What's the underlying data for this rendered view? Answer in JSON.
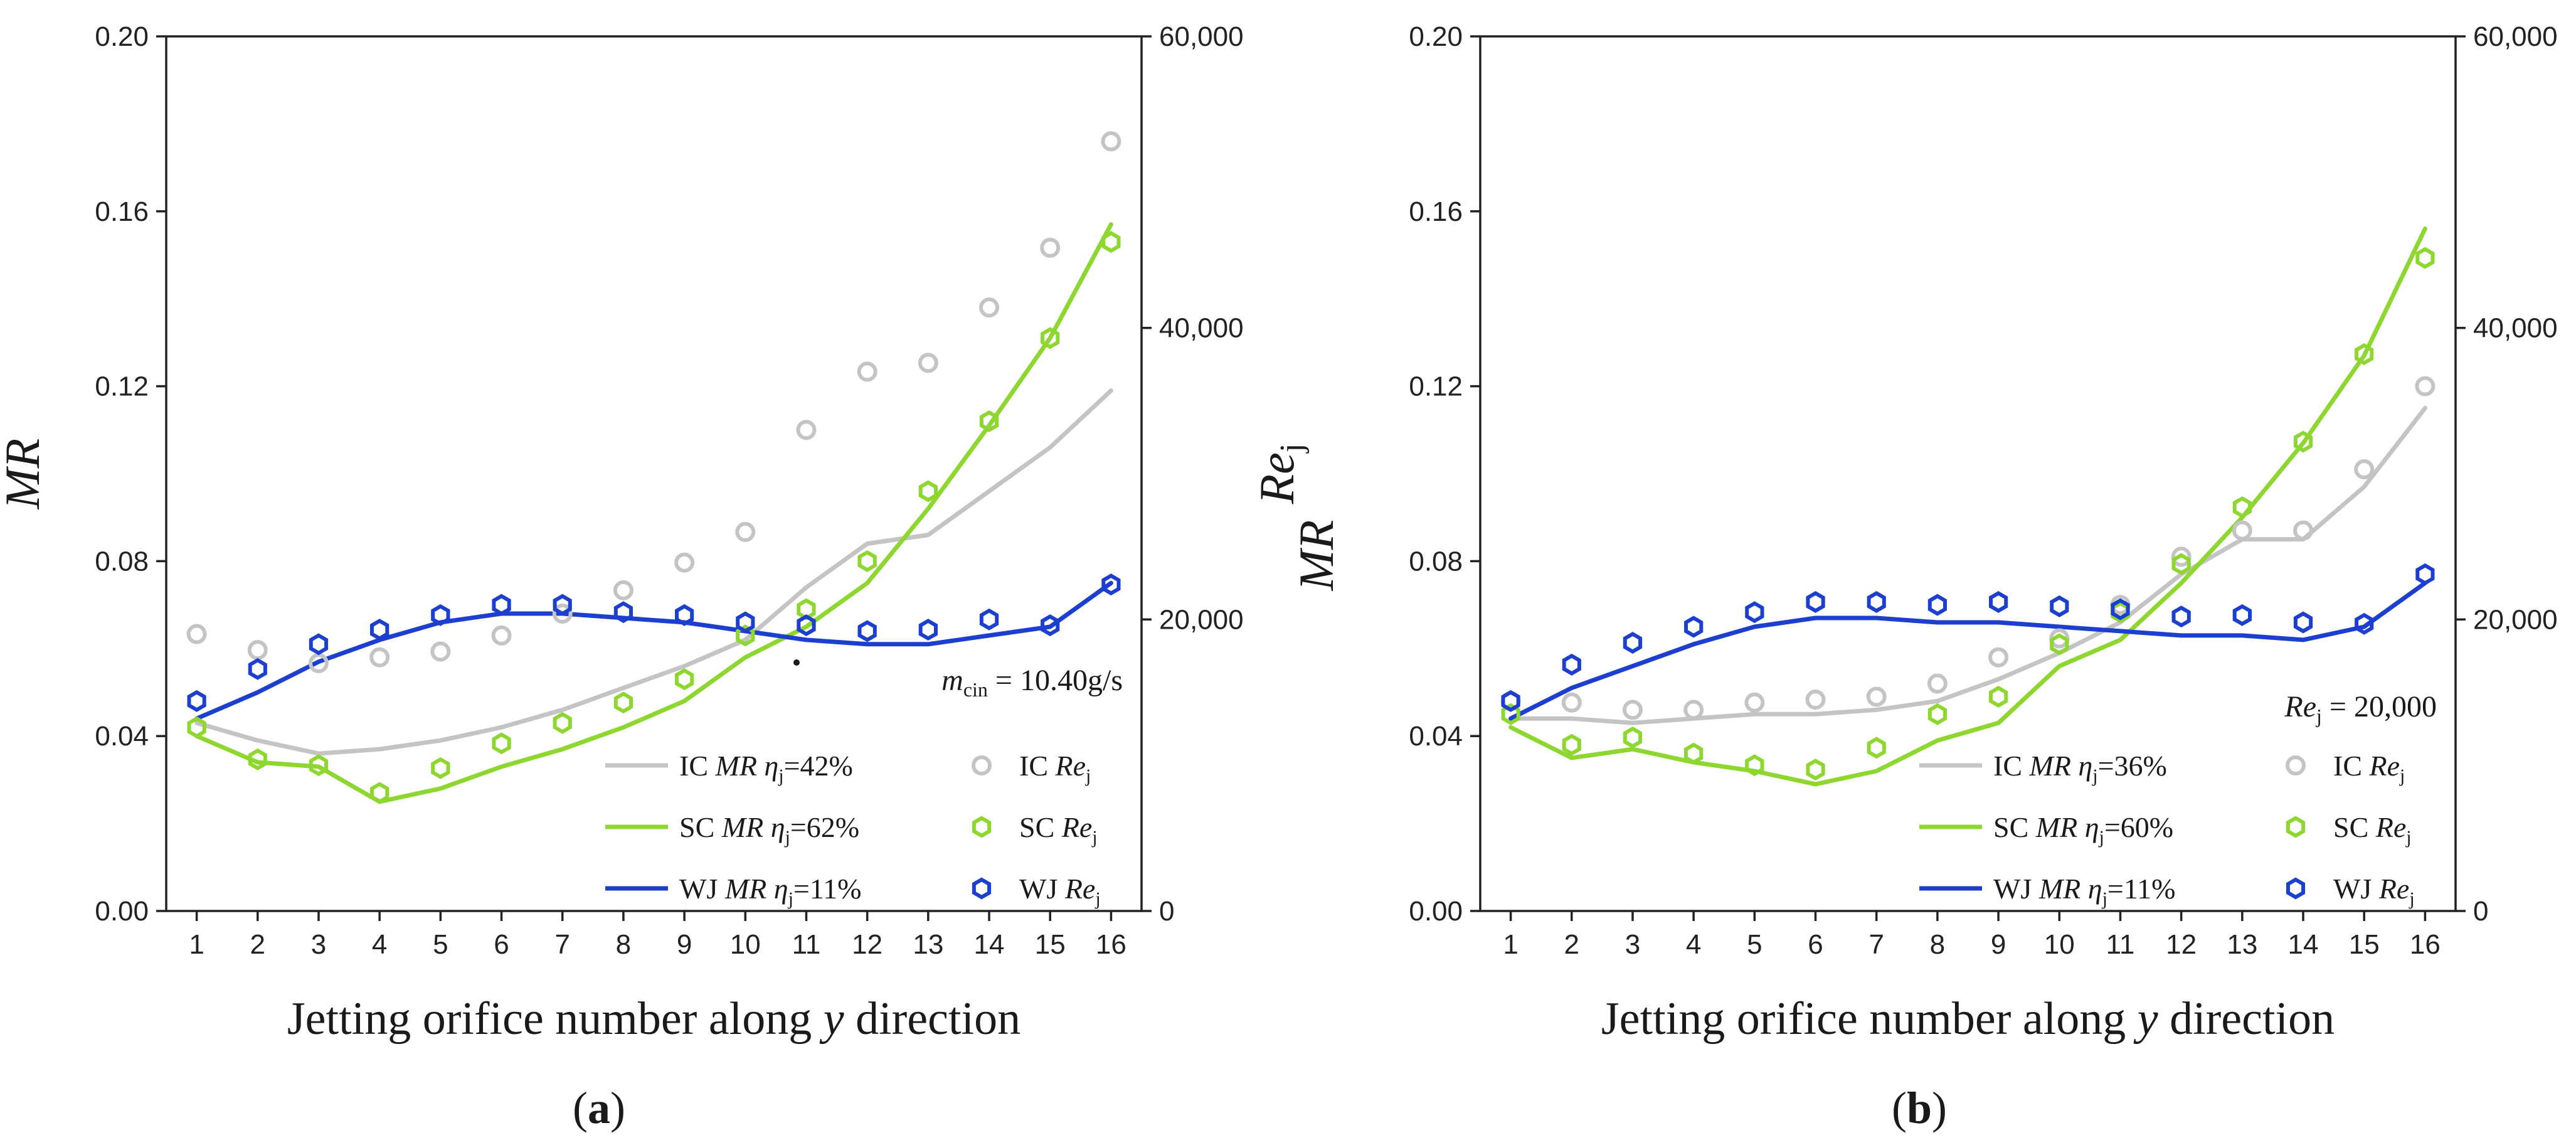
{
  "figure": {
    "xlabel_parts": [
      "Jetting orifice number along ",
      "y",
      " direction"
    ],
    "y_left_label": "MR",
    "y_right_label": {
      "base": "Re",
      "sub": "j"
    }
  },
  "chart_data": [
    {
      "type": "line+scatter",
      "panel": "a",
      "panel_label": [
        "(",
        "a",
        ")"
      ],
      "x": [
        1,
        2,
        3,
        4,
        5,
        6,
        7,
        8,
        9,
        10,
        11,
        12,
        13,
        14,
        15,
        16
      ],
      "x_ticks": [
        "1",
        "2",
        "3",
        "4",
        "5",
        "6",
        "7",
        "8",
        "9",
        "10",
        "11",
        "12",
        "13",
        "14",
        "15",
        "16"
      ],
      "xlim": [
        0.5,
        16.5
      ],
      "y_left": {
        "label": "MR",
        "lim": [
          0,
          0.2
        ],
        "ticks": [
          "0.00",
          "0.04",
          "0.08",
          "0.12",
          "0.16",
          "0.20"
        ],
        "tick_values": [
          0,
          0.04,
          0.08,
          0.12,
          0.16,
          0.2
        ]
      },
      "y_right": {
        "label": "Rej",
        "lim": [
          0,
          60000
        ],
        "ticks": [
          "0",
          "20,000",
          "40,000",
          "60,000"
        ],
        "tick_values": [
          0,
          20000,
          40000,
          60000
        ]
      },
      "annotation": {
        "symbol": "m",
        "sub": "cin",
        "text": " = 10.40g/s"
      },
      "series": [
        {
          "name": "IC MR",
          "kind": "line",
          "axis": "left",
          "color": "#c4c4c4",
          "legend": {
            "prefix": "IC ",
            "var": "MR",
            "eta": "η",
            "eta_sub": "j",
            "value": "=42%"
          },
          "values": [
            0.043,
            0.039,
            0.036,
            0.037,
            0.039,
            0.042,
            0.046,
            0.051,
            0.056,
            0.062,
            0.074,
            0.084,
            0.086,
            0.096,
            0.106,
            0.119
          ]
        },
        {
          "name": "IC Rej",
          "kind": "scatter",
          "axis": "right",
          "color": "#c4c4c4",
          "marker": "circle",
          "legend": {
            "prefix": "IC ",
            "var": "Re",
            "sub": "j"
          },
          "values": [
            19000,
            17900,
            17000,
            17400,
            17800,
            18900,
            20400,
            22000,
            23900,
            26000,
            33000,
            37000,
            37600,
            41400,
            45500,
            52800
          ]
        },
        {
          "name": "SC MR",
          "kind": "line",
          "axis": "left",
          "color": "#8ed630",
          "legend": {
            "prefix": "SC ",
            "var": "MR",
            "eta": "η",
            "eta_sub": "j",
            "value": "=62%"
          },
          "values": [
            0.04,
            0.034,
            0.033,
            0.025,
            0.028,
            0.033,
            0.037,
            0.042,
            0.048,
            0.058,
            0.065,
            0.075,
            0.092,
            0.111,
            0.131,
            0.157
          ]
        },
        {
          "name": "SC Rej",
          "kind": "scatter",
          "axis": "right",
          "color": "#8ed630",
          "marker": "hexagon",
          "legend": {
            "prefix": "SC ",
            "var": "Re",
            "sub": "j"
          },
          "values": [
            12600,
            10400,
            10000,
            8100,
            9800,
            11500,
            12900,
            14300,
            15900,
            18900,
            20700,
            24000,
            28800,
            33600,
            39300,
            45900
          ]
        },
        {
          "name": "WJ MR",
          "kind": "line",
          "axis": "left",
          "color": "#1c3fd0",
          "legend": {
            "prefix": "WJ ",
            "var": "MR",
            "eta": "η",
            "eta_sub": "j",
            "value": "=11%"
          },
          "values": [
            0.044,
            0.05,
            0.057,
            0.062,
            0.066,
            0.068,
            0.068,
            0.067,
            0.066,
            0.064,
            0.062,
            0.061,
            0.061,
            0.063,
            0.065,
            0.075
          ]
        },
        {
          "name": "WJ Rej",
          "kind": "scatter",
          "axis": "right",
          "color": "#1c3fd0",
          "marker": "hexagon",
          "legend": {
            "prefix": "WJ ",
            "var": "Re",
            "sub": "j"
          },
          "values": [
            14400,
            16600,
            18300,
            19300,
            20300,
            21000,
            21000,
            20500,
            20300,
            19800,
            19600,
            19200,
            19300,
            20000,
            19600,
            22400
          ]
        }
      ]
    },
    {
      "type": "line+scatter",
      "panel": "b",
      "panel_label": [
        "(",
        "b",
        ")"
      ],
      "x": [
        1,
        2,
        3,
        4,
        5,
        6,
        7,
        8,
        9,
        10,
        11,
        12,
        13,
        14,
        15,
        16
      ],
      "x_ticks": [
        "1",
        "2",
        "3",
        "4",
        "5",
        "6",
        "7",
        "8",
        "9",
        "10",
        "11",
        "12",
        "13",
        "14",
        "15",
        "16"
      ],
      "xlim": [
        0.5,
        16.5
      ],
      "y_left": {
        "label": "MR",
        "lim": [
          0,
          0.2
        ],
        "ticks": [
          "0.00",
          "0.04",
          "0.08",
          "0.12",
          "0.16",
          "0.20"
        ],
        "tick_values": [
          0,
          0.04,
          0.08,
          0.12,
          0.16,
          0.2
        ]
      },
      "y_right": {
        "label": "Rej",
        "lim": [
          0,
          60000
        ],
        "ticks": [
          "0",
          "20,000",
          "40,000",
          "60,000"
        ],
        "tick_values": [
          0,
          20000,
          40000,
          60000
        ]
      },
      "annotation": {
        "symbol": "Re",
        "sub": "j",
        "text": " = 20,000"
      },
      "series": [
        {
          "name": "IC MR",
          "kind": "line",
          "axis": "left",
          "color": "#c4c4c4",
          "legend": {
            "prefix": "IC ",
            "var": "MR",
            "eta": "η",
            "eta_sub": "j",
            "value": "=36%"
          },
          "values": [
            0.044,
            0.044,
            0.043,
            0.044,
            0.045,
            0.045,
            0.046,
            0.048,
            0.053,
            0.059,
            0.066,
            0.077,
            0.085,
            0.085,
            0.097,
            0.115
          ]
        },
        {
          "name": "IC Rej",
          "kind": "scatter",
          "axis": "right",
          "color": "#c4c4c4",
          "marker": "circle",
          "legend": {
            "prefix": "IC ",
            "var": "Re",
            "sub": "j"
          },
          "values": [
            14400,
            14300,
            13800,
            13800,
            14300,
            14500,
            14700,
            15600,
            17400,
            18700,
            21000,
            24300,
            26100,
            26100,
            30300,
            36000
          ]
        },
        {
          "name": "SC MR",
          "kind": "line",
          "axis": "left",
          "color": "#8ed630",
          "legend": {
            "prefix": "SC ",
            "var": "MR",
            "eta": "η",
            "eta_sub": "j",
            "value": "=60%"
          },
          "values": [
            0.042,
            0.035,
            0.037,
            0.034,
            0.032,
            0.029,
            0.032,
            0.039,
            0.043,
            0.056,
            0.062,
            0.075,
            0.09,
            0.107,
            0.127,
            0.156
          ]
        },
        {
          "name": "SC Rej",
          "kind": "scatter",
          "axis": "right",
          "color": "#8ed630",
          "marker": "hexagon",
          "legend": {
            "prefix": "SC ",
            "var": "Re",
            "sub": "j"
          },
          "values": [
            13500,
            11400,
            11900,
            10800,
            10000,
            9700,
            11200,
            13500,
            14700,
            18300,
            20500,
            23800,
            27700,
            32200,
            38200,
            44800
          ]
        },
        {
          "name": "WJ MR",
          "kind": "line",
          "axis": "left",
          "color": "#1c3fd0",
          "legend": {
            "prefix": "WJ ",
            "var": "MR",
            "eta": "η",
            "eta_sub": "j",
            "value": "=11%"
          },
          "values": [
            0.044,
            0.051,
            0.056,
            0.061,
            0.065,
            0.067,
            0.067,
            0.066,
            0.066,
            0.065,
            0.064,
            0.063,
            0.063,
            0.062,
            0.065,
            0.075
          ]
        },
        {
          "name": "WJ Rej",
          "kind": "scatter",
          "axis": "right",
          "color": "#1c3fd0",
          "marker": "hexagon",
          "legend": {
            "prefix": "WJ ",
            "var": "Re",
            "sub": "j"
          },
          "values": [
            14400,
            16900,
            18400,
            19500,
            20500,
            21200,
            21200,
            21000,
            21200,
            20900,
            20700,
            20200,
            20300,
            19800,
            19700,
            23100
          ]
        }
      ]
    }
  ]
}
